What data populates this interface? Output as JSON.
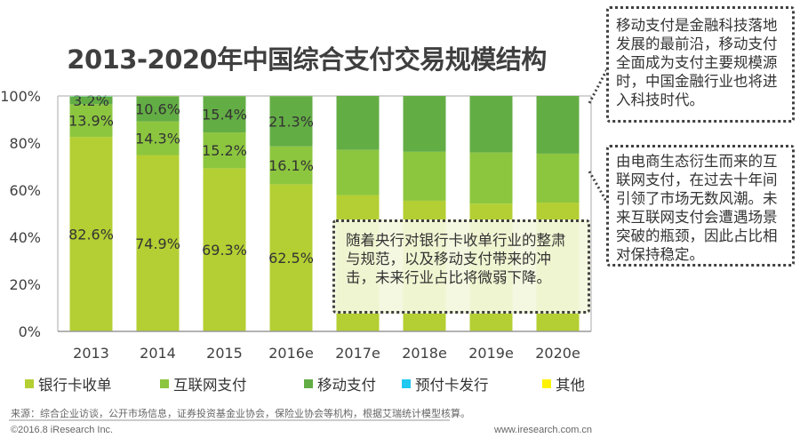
{
  "chart_data": {
    "type": "bar",
    "stacked": true,
    "title": "2013-2020年中国综合支付交易规模结构",
    "categories": [
      "2013",
      "2014",
      "2015",
      "2016e",
      "2017e",
      "2018e",
      "2019e",
      "2020e"
    ],
    "ylim": [
      0,
      100
    ],
    "yticks": [
      "0%",
      "20%",
      "40%",
      "60%",
      "80%",
      "100%"
    ],
    "legend_position": "bottom",
    "series": [
      {
        "name": "银行卡收单",
        "color": "#b3cf33",
        "values": [
          82.6,
          74.9,
          69.3,
          62.5,
          57.9,
          55.5,
          54.3,
          54.7
        ],
        "labels": [
          "82.6%",
          "74.9%",
          "69.3%",
          "62.5%",
          "",
          "",
          "",
          ""
        ]
      },
      {
        "name": "互联网支付",
        "color": "#8cc63f",
        "values": [
          13.9,
          14.3,
          15.2,
          16.1,
          19.2,
          20.8,
          21.7,
          20.8
        ],
        "labels": [
          "13.9%",
          "14.3%",
          "15.2%",
          "16.1%",
          "",
          "",
          "",
          ""
        ]
      },
      {
        "name": "移动支付",
        "color": "#63ad45",
        "values": [
          3.2,
          10.6,
          15.4,
          21.3,
          22.9,
          23.7,
          24.0,
          24.5
        ],
        "labels": [
          "3.2%",
          "10.6%",
          "15.4%",
          "21.3%",
          "",
          "",
          "",
          ""
        ]
      },
      {
        "name": "预付卡发行",
        "color": "#1ec8f0",
        "values": [
          0.2,
          0.1,
          0.05,
          0.05,
          0,
          0,
          0,
          0
        ]
      },
      {
        "name": "其他",
        "color": "#fff200",
        "values": [
          0.1,
          0.1,
          0.05,
          0.05,
          0,
          0,
          0,
          0
        ]
      }
    ]
  },
  "callouts": {
    "mobile": "移动支付是金融科技落地发展的最前沿，移动支付全面成为支付主要规模源时，中国金融行业也将进入科技时代。",
    "internet": "由电商生态衍生而来的互联网支付，在过去十年间引领了市场无数风潮。未来互联网支付会遭遇场景突破的瓶颈，因此占比相对保持稳定。",
    "bank": "随着央行对银行卡收单行业的整肃与规范，以及移动支付带来的冲击，未来行业占比将微弱下降。"
  },
  "footer": {
    "source": "来源：综合企业访谈，公开市场信息，证券投资基金业协会，保险业协会等机构，根据艾瑞统计模型核算。",
    "copyright": "©2016.8 iResearch Inc.",
    "website": "www.iresearch.com.cn"
  }
}
